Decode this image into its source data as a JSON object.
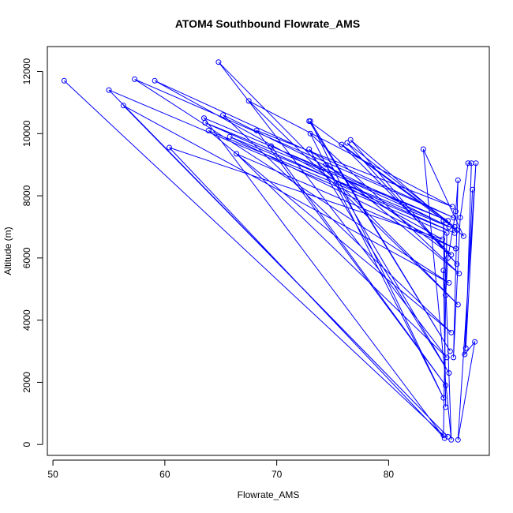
{
  "chart_data": {
    "type": "line",
    "title": "ATOM4 Southbound Flowrate_AMS",
    "xlabel": "Flowrate_AMS",
    "ylabel": "Altitude (m)",
    "xlim": [
      49.5,
      89.0
    ],
    "ylim": [
      -350,
      12800
    ],
    "xticks": [
      50,
      60,
      70,
      80
    ],
    "yticks": [
      0,
      2000,
      4000,
      6000,
      8000,
      10000,
      12000
    ],
    "grid": false,
    "series": [
      {
        "name": "",
        "color": "#0000ff",
        "marker": "circle-open",
        "x": [
          51.0,
          84.9,
          85.2,
          55.0,
          85.3,
          56.3,
          85.4,
          57.3,
          85.8,
          59.1,
          84.8,
          60.4,
          85.0,
          63.5,
          85.3,
          63.6,
          85.9,
          63.9,
          85.6,
          65.2,
          85.4,
          65.8,
          86.0,
          66.4,
          85.2,
          64.8,
          86.2,
          67.5,
          85.7,
          68.2,
          85.1,
          69.5,
          86.1,
          72.9,
          85.5,
          73.0,
          84.9,
          73.0,
          86.3,
          72.9,
          85.4,
          74.4,
          85.6,
          75.8,
          85.9,
          76.3,
          86.1,
          76.6,
          86.7,
          83.1,
          85.6,
          84.9,
          85.1,
          84.9,
          85.1,
          85.3,
          86.0,
          86.2,
          85.8,
          86.4,
          87.1,
          87.4,
          86.9,
          87.8,
          86.2,
          87.7,
          86.8,
          87.5
        ],
        "y": [
          11700,
          300,
          6800,
          11400,
          250,
          10900,
          5200,
          11750,
          7300,
          11700,
          6600,
          9550,
          200,
          10500,
          7200,
          10350,
          6800,
          10100,
          3600,
          10600,
          7000,
          9900,
          6300,
          9350,
          2800,
          12300,
          4500,
          11050,
          7650,
          10100,
          1900,
          9600,
          6900,
          10400,
          3000,
          10400,
          1500,
          10000,
          5500,
          9500,
          2300,
          9000,
          6100,
          9650,
          7000,
          9700,
          5800,
          9800,
          6700,
          9500,
          150,
          7200,
          1200,
          5600,
          4800,
          6000,
          7500,
          8500,
          2800,
          7300,
          9050,
          9050,
          3100,
          9050,
          150,
          3300,
          2900,
          8200
        ]
      }
    ]
  }
}
